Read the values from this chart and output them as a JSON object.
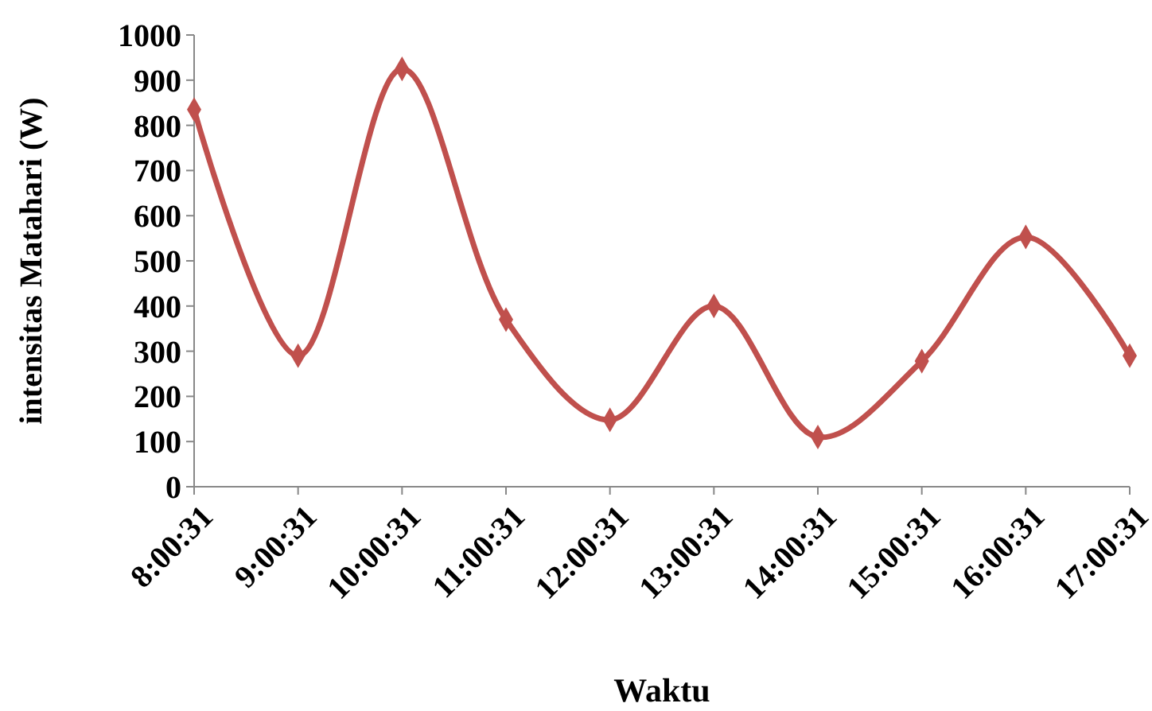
{
  "chart_data": {
    "type": "line",
    "xlabel": "Waktu",
    "ylabel": "intensitas Matahari (W)",
    "categories": [
      "8:00:31",
      "9:00:31",
      "10:00:31",
      "11:00:31",
      "12:00:31",
      "13:00:31",
      "14:00:31",
      "15:00:31",
      "16:00:31",
      "17:00:31"
    ],
    "series": [
      {
        "color": "#c0504d",
        "values": [
          835,
          290,
          925,
          370,
          148,
          400,
          110,
          278,
          553,
          290
        ]
      }
    ],
    "ylim": [
      0,
      1000
    ],
    "yticks": [
      0,
      100,
      200,
      300,
      400,
      500,
      600,
      700,
      800,
      900,
      1000
    ],
    "grid": false,
    "marker": "diamond",
    "line_style": "solid"
  }
}
